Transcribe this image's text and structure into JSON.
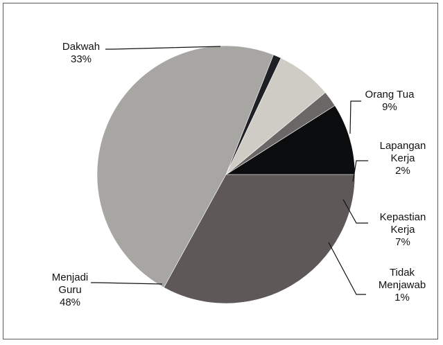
{
  "chart_data": {
    "type": "pie",
    "title": "",
    "slices": [
      {
        "name": "Orang Tua",
        "name_lines": [
          "Orang Tua"
        ],
        "percent_label": "9%",
        "value": 9,
        "color": "#0a0c0e"
      },
      {
        "name": "Lapangan Kerja",
        "name_lines": [
          "Lapangan",
          "Kerja"
        ],
        "percent_label": "2%",
        "value": 2,
        "color": "#6b6767"
      },
      {
        "name": "Kepastian Kerja",
        "name_lines": [
          "Kepastian",
          "Kerja"
        ],
        "percent_label": "7%",
        "value": 7,
        "color": "#cfccc6"
      },
      {
        "name": "Tidak Menjawab",
        "name_lines": [
          "Tidak",
          "Menjawab"
        ],
        "percent_label": "1%",
        "value": 1,
        "color": "#1e2026"
      },
      {
        "name": "Menjadi Guru",
        "name_lines": [
          "Menjadi",
          "Guru"
        ],
        "percent_label": "48%",
        "value": 48,
        "color": "#a8a6a3"
      },
      {
        "name": "Dakwah",
        "name_lines": [
          "Dakwah"
        ],
        "percent_label": "33%",
        "value": 33,
        "color": "#5e5859"
      }
    ],
    "legend": "none",
    "labels": "outside with leader lines"
  }
}
